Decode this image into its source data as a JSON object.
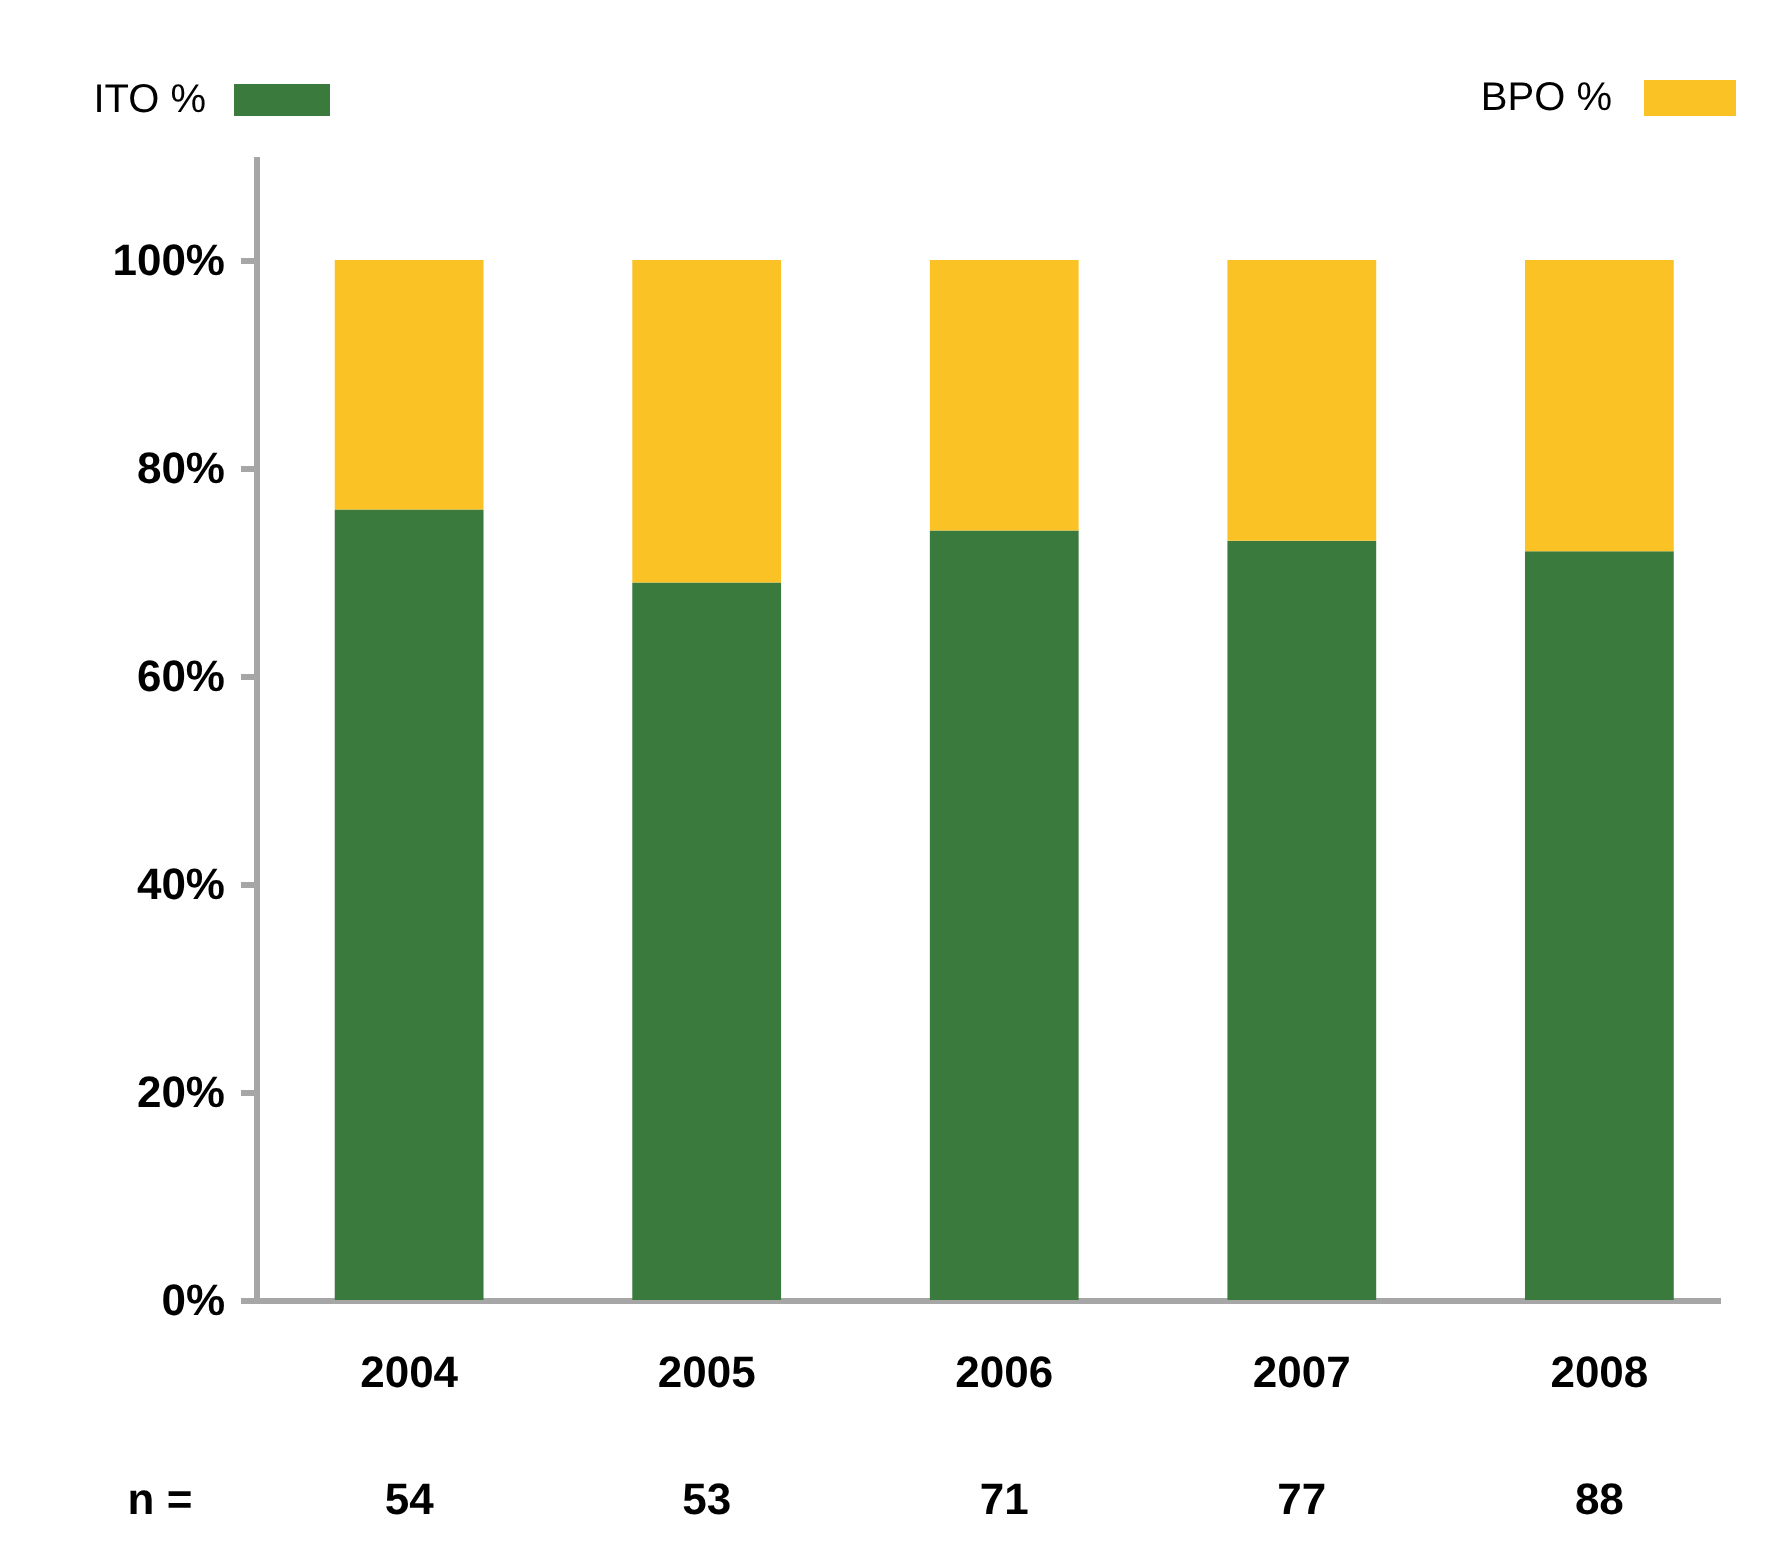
{
  "chart_data": {
    "type": "bar",
    "stacked": true,
    "categories": [
      "2004",
      "2005",
      "2006",
      "2007",
      "2008"
    ],
    "series": [
      {
        "name": "ITO %",
        "color": "#3a7a3c",
        "values": [
          76,
          69,
          74,
          73,
          72
        ]
      },
      {
        "name": "BPO %",
        "color": "#fbc226",
        "values": [
          24,
          31,
          26,
          27,
          28
        ]
      }
    ],
    "ylim": [
      0,
      110
    ],
    "yticks": [
      {
        "value": 0,
        "label": "0%"
      },
      {
        "value": 20,
        "label": "20%"
      },
      {
        "value": 40,
        "label": "40%"
      },
      {
        "value": 60,
        "label": "60%"
      },
      {
        "value": 80,
        "label": "80%"
      },
      {
        "value": 100,
        "label": "100%"
      }
    ],
    "legend": "top",
    "annotations": [
      "n =",
      "54",
      "53",
      "71",
      "77",
      "88"
    ]
  }
}
